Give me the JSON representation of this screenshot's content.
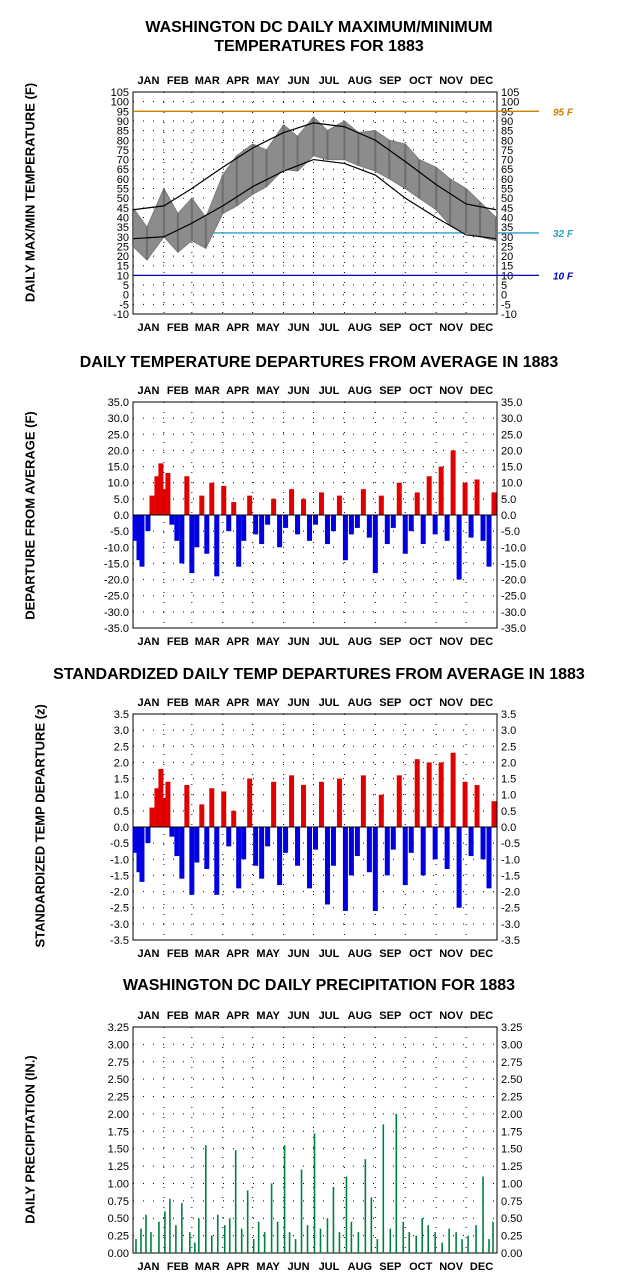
{
  "charts_meta": {
    "panel1_title_line1": "WASHINGTON DC DAILY MAXIMUM/MINIMUM",
    "panel1_title_line2": "TEMPERATURES FOR 1883",
    "panel1_ylabel": "DAILY MAX/MIN TEMPERATURE (F)",
    "panel2_title": "DAILY TEMPERATURE DEPARTURES FROM AVERAGE IN 1883",
    "panel2_ylabel": "DEPARTURE FROM AVERAGE (F)",
    "panel3_title": "STANDARDIZED DAILY TEMP DEPARTURES FROM AVERAGE IN 1883",
    "panel3_ylabel": "STANDARDIZED TEMP DEPARTURE  (z)",
    "panel4_title": "WASHINGTON DC DAILY PRECIPITATION FOR 1883",
    "panel4_ylabel": "DAILY PRECIPITATION (IN.)"
  },
  "chart_data": [
    {
      "type": "line",
      "title": "WASHINGTON DC DAILY MAXIMUM/MINIMUM TEMPERATURES FOR 1883",
      "ylabel": "DAILY MAX/MIN TEMPERATURE (F)",
      "months": [
        "JAN",
        "FEB",
        "MAR",
        "APR",
        "MAY",
        "JUN",
        "JUL",
        "AUG",
        "SEP",
        "OCT",
        "NOV",
        "DEC"
      ],
      "ylim": [
        -10,
        105
      ],
      "yticks": [
        -10,
        -5,
        0,
        5,
        10,
        15,
        20,
        25,
        30,
        35,
        40,
        45,
        50,
        55,
        60,
        65,
        70,
        75,
        80,
        85,
        90,
        95,
        100,
        105
      ],
      "reference_lines": [
        {
          "value": 95,
          "label": "95 F",
          "color": "#d08000"
        },
        {
          "value": 32,
          "label": "32 F",
          "color": "#2aa0c8"
        },
        {
          "value": 10,
          "label": "10 F",
          "color": "#0000c0"
        }
      ],
      "series": [
        {
          "color": "#808080",
          "x": [
            1,
            15,
            32,
            46,
            60,
            74,
            91,
            105,
            121,
            135,
            152,
            166,
            182,
            196,
            213,
            227,
            244,
            258,
            274,
            288,
            305,
            319,
            335,
            349,
            365
          ],
          "max": [
            45,
            35,
            55,
            42,
            50,
            40,
            62,
            72,
            78,
            75,
            88,
            82,
            92,
            85,
            90,
            84,
            85,
            80,
            78,
            70,
            66,
            60,
            55,
            48,
            40
          ],
          "min": [
            25,
            18,
            30,
            22,
            28,
            24,
            42,
            46,
            52,
            56,
            65,
            64,
            72,
            70,
            70,
            67,
            64,
            60,
            55,
            50,
            44,
            36,
            32,
            30,
            28
          ]
        },
        {
          "color": "#000000",
          "x": [
            1,
            32,
            60,
            91,
            121,
            152,
            182,
            213,
            244,
            274,
            305,
            335,
            365
          ],
          "normal_max": [
            44,
            46,
            55,
            66,
            76,
            84,
            89,
            87,
            80,
            69,
            57,
            47,
            44
          ],
          "normal_min": [
            29,
            30,
            37,
            46,
            56,
            64,
            70,
            68,
            62,
            50,
            40,
            31,
            29
          ]
        }
      ]
    },
    {
      "type": "bar",
      "title": "DAILY TEMPERATURE DEPARTURES FROM AVERAGE IN 1883",
      "ylabel": "DEPARTURE FROM AVERAGE (F)",
      "months": [
        "JAN",
        "FEB",
        "MAR",
        "APR",
        "MAY",
        "JUN",
        "JUL",
        "AUG",
        "SEP",
        "OCT",
        "NOV",
        "DEC"
      ],
      "ylim": [
        -35,
        35
      ],
      "yticks": [
        -35,
        -30,
        -25,
        -20,
        -15,
        -10,
        -5,
        0,
        5,
        10,
        15,
        20,
        25,
        30,
        35
      ],
      "colors": {
        "positive": "#e00000",
        "negative": "#0000e0"
      },
      "x": [
        3,
        7,
        10,
        16,
        20,
        25,
        29,
        33,
        36,
        40,
        45,
        50,
        55,
        60,
        65,
        70,
        75,
        80,
        85,
        92,
        97,
        102,
        107,
        112,
        118,
        124,
        130,
        136,
        142,
        148,
        154,
        160,
        166,
        172,
        178,
        184,
        190,
        196,
        202,
        208,
        214,
        220,
        226,
        232,
        238,
        244,
        250,
        256,
        262,
        268,
        274,
        280,
        286,
        292,
        298,
        304,
        310,
        316,
        322,
        328,
        334,
        340,
        346,
        352,
        358,
        363
      ],
      "values": [
        -8,
        -14,
        -16,
        -5,
        6,
        12,
        16,
        8,
        13,
        -3,
        -8,
        -15,
        12,
        -18,
        -10,
        6,
        -12,
        10,
        -19,
        9,
        -5,
        4,
        -16,
        -8,
        6,
        -6,
        -9,
        -3,
        5,
        -10,
        -4,
        8,
        -6,
        5,
        -8,
        -3,
        7,
        -9,
        -5,
        6,
        -14,
        -6,
        -4,
        8,
        -7,
        -18,
        6,
        -9,
        -4,
        10,
        -12,
        -5,
        7,
        -9,
        12,
        -6,
        15,
        -8,
        20,
        -20,
        10,
        -7,
        11,
        -8,
        -16,
        7
      ]
    },
    {
      "type": "bar",
      "title": "STANDARDIZED DAILY TEMP DEPARTURES FROM AVERAGE IN 1883",
      "ylabel": "STANDARDIZED TEMP DEPARTURE  (z)",
      "months": [
        "JAN",
        "FEB",
        "MAR",
        "APR",
        "MAY",
        "JUN",
        "JUL",
        "AUG",
        "SEP",
        "OCT",
        "NOV",
        "DEC"
      ],
      "ylim": [
        -3.5,
        3.5
      ],
      "yticks": [
        -3.5,
        -3.0,
        -2.5,
        -2.0,
        -1.5,
        -1.0,
        -0.5,
        0.0,
        0.5,
        1.0,
        1.5,
        2.0,
        2.5,
        3.0,
        3.5
      ],
      "colors": {
        "positive": "#e00000",
        "negative": "#0000e0"
      },
      "x": [
        3,
        7,
        10,
        16,
        20,
        25,
        29,
        33,
        36,
        40,
        45,
        50,
        55,
        60,
        65,
        70,
        75,
        80,
        85,
        92,
        97,
        102,
        107,
        112,
        118,
        124,
        130,
        136,
        142,
        148,
        154,
        160,
        166,
        172,
        178,
        184,
        190,
        196,
        202,
        208,
        214,
        220,
        226,
        232,
        238,
        244,
        250,
        256,
        262,
        268,
        274,
        280,
        286,
        292,
        298,
        304,
        310,
        316,
        322,
        328,
        334,
        340,
        346,
        352,
        358,
        363
      ],
      "values": [
        -0.8,
        -1.4,
        -1.7,
        -0.5,
        0.6,
        1.2,
        1.8,
        0.9,
        1.4,
        -0.3,
        -0.9,
        -1.6,
        1.3,
        -2.1,
        -1.1,
        0.7,
        -1.3,
        1.2,
        -2.1,
        1.1,
        -0.6,
        0.5,
        -1.9,
        -1.0,
        1.5,
        -1.2,
        -1.6,
        -0.6,
        1.4,
        -1.8,
        -0.8,
        1.6,
        -1.2,
        1.3,
        -1.9,
        -0.7,
        1.4,
        -2.4,
        -1.2,
        1.5,
        -2.6,
        -1.5,
        -0.9,
        1.6,
        -1.4,
        -2.6,
        1.0,
        -1.5,
        -0.7,
        1.6,
        -1.8,
        -0.8,
        2.1,
        -1.5,
        2.0,
        -1.0,
        2.0,
        -1.3,
        2.3,
        -2.5,
        1.4,
        -0.9,
        1.3,
        -1.0,
        -1.9,
        0.8
      ]
    },
    {
      "type": "bar",
      "title": "WASHINGTON DC DAILY PRECIPITATION FOR 1883",
      "ylabel": "DAILY PRECIPITATION (IN.)",
      "months": [
        "JAN",
        "FEB",
        "MAR",
        "APR",
        "MAY",
        "JUN",
        "JUL",
        "AUG",
        "SEP",
        "OCT",
        "NOV",
        "DEC"
      ],
      "ylim": [
        0,
        3.25
      ],
      "yticks": [
        0.0,
        0.25,
        0.5,
        0.75,
        1.0,
        1.25,
        1.5,
        1.75,
        2.0,
        2.25,
        2.5,
        2.75,
        3.0,
        3.25
      ],
      "colors": {
        "bar": "#008040"
      },
      "x": [
        4,
        9,
        14,
        19,
        27,
        33,
        38,
        44,
        50,
        58,
        63,
        67,
        74,
        80,
        86,
        93,
        98,
        104,
        110,
        116,
        122,
        127,
        133,
        140,
        146,
        153,
        158,
        164,
        170,
        176,
        183,
        189,
        196,
        202,
        208,
        215,
        220,
        227,
        234,
        240,
        246,
        252,
        259,
        265,
        272,
        278,
        285,
        291,
        297,
        304,
        311,
        318,
        325,
        331,
        337,
        345,
        352,
        358,
        362
      ],
      "values": [
        0.2,
        0.35,
        0.55,
        0.3,
        0.45,
        0.6,
        0.78,
        0.4,
        0.72,
        0.3,
        0.15,
        0.5,
        1.55,
        0.25,
        0.55,
        0.4,
        0.5,
        1.48,
        0.35,
        0.9,
        0.2,
        0.45,
        0.3,
        1.0,
        0.45,
        1.55,
        0.3,
        0.2,
        1.2,
        0.4,
        1.72,
        0.35,
        0.5,
        0.95,
        0.3,
        1.1,
        0.45,
        0.3,
        1.35,
        0.8,
        0.2,
        1.85,
        0.35,
        2.0,
        0.45,
        0.3,
        0.25,
        0.5,
        0.4,
        0.3,
        0.15,
        0.35,
        0.3,
        0.2,
        0.25,
        0.4,
        1.1,
        0.2,
        0.45
      ]
    }
  ]
}
